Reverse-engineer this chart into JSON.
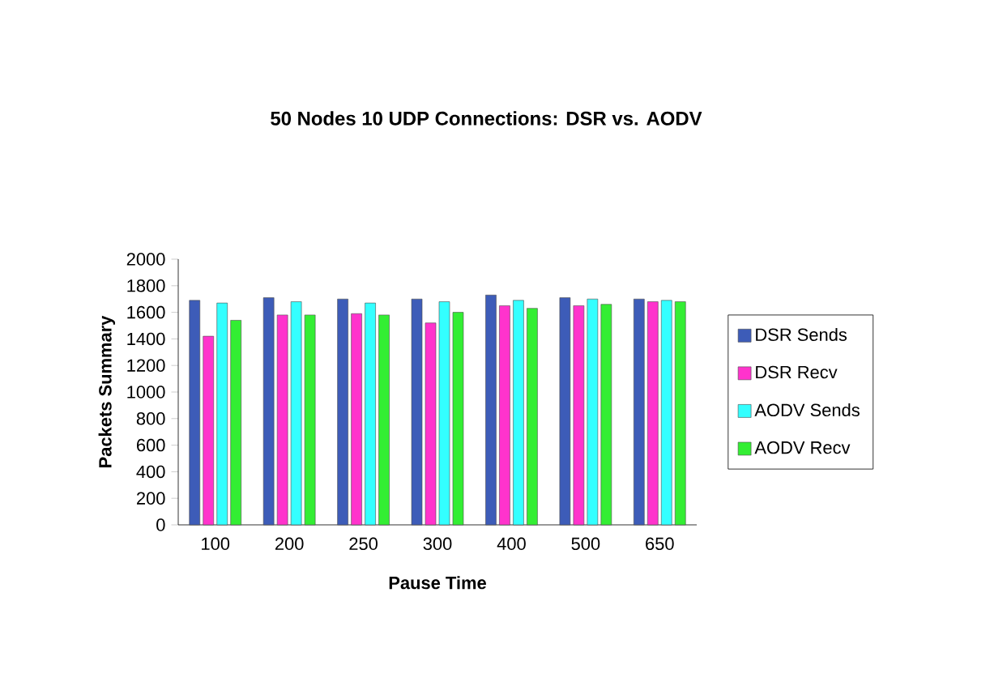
{
  "chart_data": {
    "type": "bar",
    "title": "50 Nodes 10 UDP Connections: DSR vs. AODV",
    "xlabel": "Pause Time",
    "ylabel": "Packets Summary",
    "categories": [
      "100",
      "200",
      "250",
      "300",
      "400",
      "500",
      "650"
    ],
    "series": [
      {
        "name": "DSR Sends",
        "color": "#3d5cb8",
        "values": [
          1690,
          1710,
          1700,
          1700,
          1730,
          1710,
          1700
        ]
      },
      {
        "name": "DSR Recv",
        "color": "#ff33cc",
        "values": [
          1420,
          1580,
          1590,
          1520,
          1650,
          1650,
          1680
        ]
      },
      {
        "name": "AODV Sends",
        "color": "#33ffff",
        "values": [
          1670,
          1680,
          1670,
          1680,
          1690,
          1700,
          1690
        ]
      },
      {
        "name": "AODV Recv",
        "color": "#33ee33",
        "values": [
          1540,
          1580,
          1580,
          1600,
          1630,
          1660,
          1680
        ]
      }
    ],
    "ylim": [
      0,
      2000
    ],
    "yticks": [
      0,
      200,
      400,
      600,
      800,
      1000,
      1200,
      1400,
      1600,
      1800,
      2000
    ],
    "grid": false,
    "legend": "right"
  }
}
